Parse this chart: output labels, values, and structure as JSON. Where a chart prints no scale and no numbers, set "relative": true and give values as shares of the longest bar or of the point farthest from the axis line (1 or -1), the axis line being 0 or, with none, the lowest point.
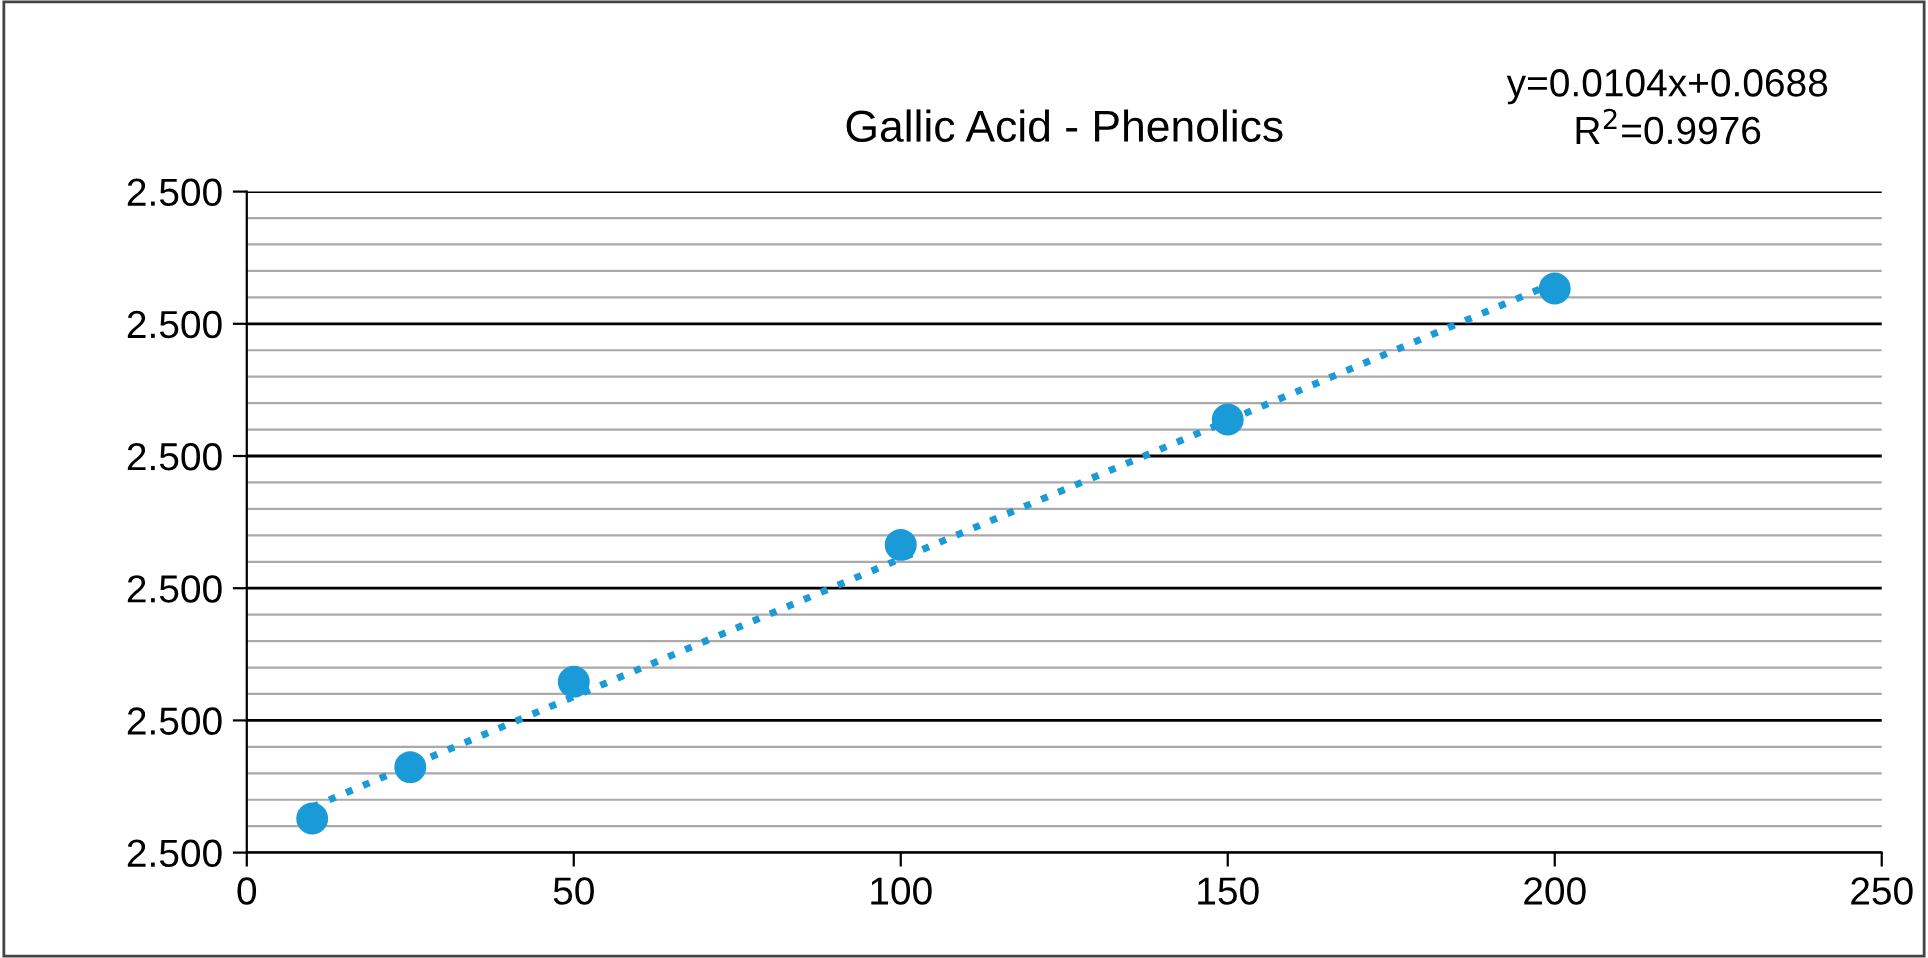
{
  "chart_data": {
    "type": "scatter",
    "title": "Gallic Acid - Phenolics",
    "relative": true,
    "annotations": [
      "y=0.0104x+0.0688",
      "R$^{2}$=0.9976",
      "2.500",
      "2.500",
      "2.500",
      "2.500",
      "2.500",
      "2.500"
    ],
    "series": [
      {
        "color": "#1b9ad8",
        "marker": "circle",
        "x": [
          10,
          25,
          50,
          100,
          150,
          200
        ],
        "values": [
          0.06,
          0.15,
          0.3,
          0.54,
          0.76,
          0.99
        ]
      },
      {
        "type": "line",
        "color": "#1b9ad8",
        "line_style": "dotted",
        "x": [
          10,
          200
        ],
        "values": [
          0.08,
          1.0
        ]
      }
    ],
    "xlim": [
      0,
      250
    ],
    "xticks": [
      0,
      50,
      100,
      150,
      200,
      250
    ],
    "grid": "y"
  }
}
